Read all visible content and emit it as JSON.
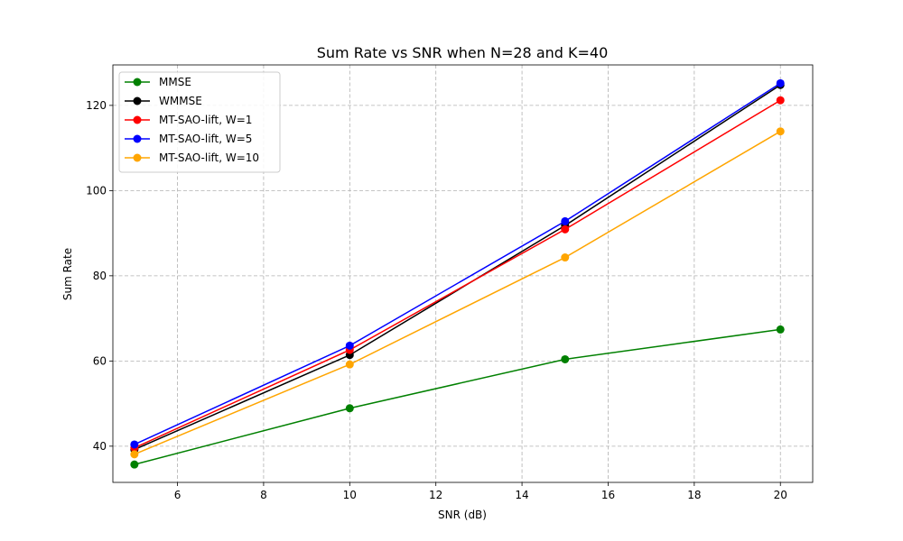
{
  "chart_data": {
    "type": "line",
    "title": "Sum Rate vs SNR when N=28 and K=40",
    "xlabel": "SNR (dB)",
    "ylabel": "Sum Rate",
    "xlim": [
      4.5,
      20.75
    ],
    "ylim": [
      31.5,
      129.5
    ],
    "xticks": [
      6,
      8,
      10,
      12,
      14,
      16,
      18,
      20
    ],
    "yticks": [
      40,
      60,
      80,
      100,
      120
    ],
    "grid": true,
    "legend_position": "top-left",
    "x": [
      5,
      10,
      15,
      20
    ],
    "series": [
      {
        "name": "MMSE",
        "color": "#008000",
        "values": [
          35.7,
          48.9,
          60.4,
          67.4
        ]
      },
      {
        "name": "WMMSE",
        "color": "#000000",
        "values": [
          39.2,
          61.4,
          91.8,
          124.8
        ]
      },
      {
        "name": "MT-SAO-lift, W=1",
        "color": "#ff0000",
        "values": [
          39.6,
          62.6,
          90.9,
          121.2
        ]
      },
      {
        "name": "MT-SAO-lift, W=5",
        "color": "#0000ff",
        "values": [
          40.4,
          63.6,
          92.8,
          125.2
        ]
      },
      {
        "name": "MT-SAO-lift, W=10",
        "color": "#ffa500",
        "values": [
          38.1,
          59.2,
          84.3,
          113.9
        ]
      }
    ]
  }
}
